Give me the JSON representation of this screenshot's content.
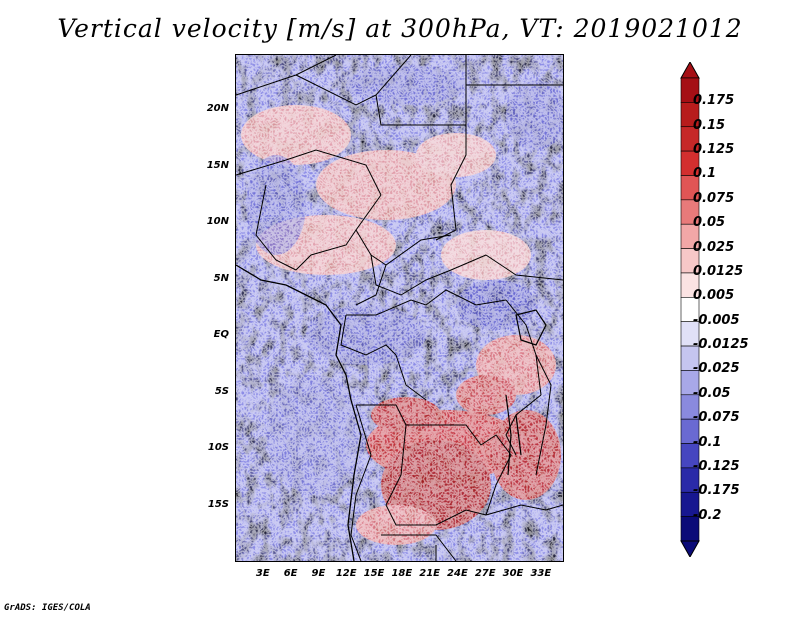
{
  "title": "Vertical velocity [m/s] at 300hPa, VT: 2019021012",
  "credit": "GrADS: IGES/COLA",
  "map": {
    "lon_range": [
      0,
      35.5
    ],
    "lat_range": [
      -20,
      25
    ],
    "lat_ticks": [
      {
        "value": 20,
        "label": "20N"
      },
      {
        "value": 15,
        "label": "15N"
      },
      {
        "value": 10,
        "label": "10N"
      },
      {
        "value": 5,
        "label": "5N"
      },
      {
        "value": 0,
        "label": "EQ"
      },
      {
        "value": -5,
        "label": "5S"
      },
      {
        "value": -10,
        "label": "10S"
      },
      {
        "value": -15,
        "label": "15S"
      }
    ],
    "lon_ticks": [
      {
        "value": 3,
        "label": "3E"
      },
      {
        "value": 6,
        "label": "6E"
      },
      {
        "value": 9,
        "label": "9E"
      },
      {
        "value": 12,
        "label": "12E"
      },
      {
        "value": 15,
        "label": "15E"
      },
      {
        "value": 18,
        "label": "18E"
      },
      {
        "value": 21,
        "label": "21E"
      },
      {
        "value": 24,
        "label": "24E"
      },
      {
        "value": 27,
        "label": "27E"
      },
      {
        "value": 30,
        "label": "30E"
      },
      {
        "value": 33,
        "label": "33E"
      }
    ]
  },
  "colorbar": {
    "labels": [
      "0.175",
      "0.15",
      "0.125",
      "0.1",
      "0.075",
      "0.05",
      "0.025",
      "0.0125",
      "0.005",
      "-0.005",
      "-0.0125",
      "-0.025",
      "-0.05",
      "-0.075",
      "-0.1",
      "-0.125",
      "-0.175",
      "-0.2"
    ],
    "colors": [
      "#a50f15",
      "#b71c1c",
      "#c62828",
      "#d32f2f",
      "#e05555",
      "#e87a7a",
      "#f2a7a7",
      "#f7c8c8",
      "#fbe3e3",
      "#ffffff",
      "#e0e0f7",
      "#c5c5f0",
      "#a8a8e8",
      "#8a8ade",
      "#6a6ad2",
      "#4646c0",
      "#2a2aa8",
      "#171790",
      "#0b0b78"
    ],
    "top_color": "#a50f15",
    "bottom_color": "#0b0b78"
  }
}
